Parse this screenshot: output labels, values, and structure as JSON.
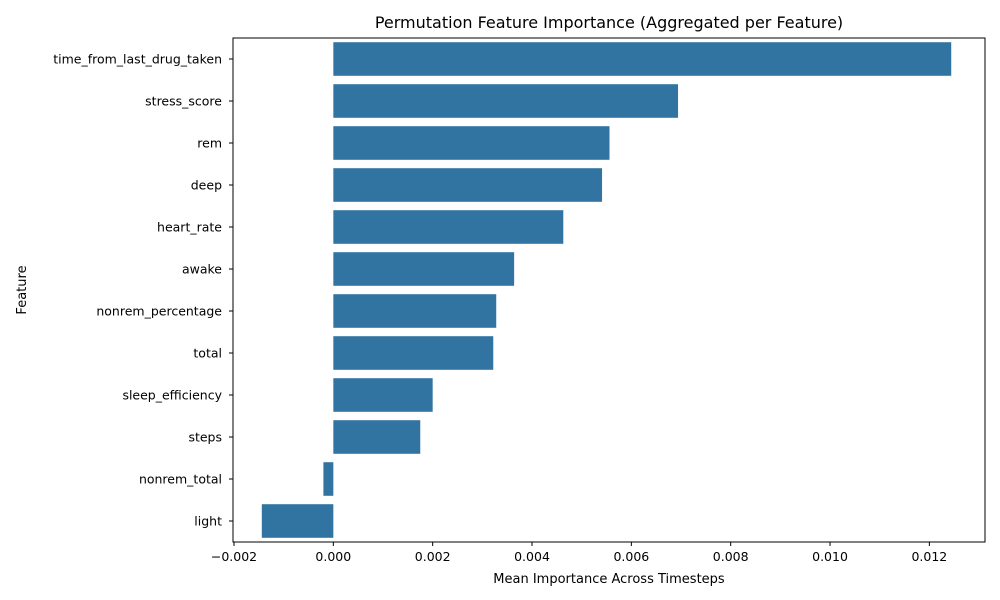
{
  "chart_data": {
    "type": "bar",
    "orientation": "horizontal",
    "title": "Permutation Feature Importance (Aggregated per Feature)",
    "xlabel": "Mean Importance Across Timesteps",
    "ylabel": "Feature",
    "xlim": [
      -0.00202,
      0.01312
    ],
    "xticks": [
      -0.002,
      0.0,
      0.002,
      0.004,
      0.006,
      0.008,
      0.01,
      0.012
    ],
    "xtick_labels": [
      "−0.002",
      "0.000",
      "0.002",
      "0.004",
      "0.006",
      "0.008",
      "0.010",
      "0.012"
    ],
    "grid": false,
    "bar_color": "#3274a1",
    "categories": [
      "time_from_last_drug_taken",
      "stress_score",
      "rem",
      "deep",
      "heart_rate",
      "awake",
      "nonrem_percentage",
      "total",
      "sleep_efficiency",
      "steps",
      "nonrem_total",
      "light"
    ],
    "values": [
      0.01244,
      0.00694,
      0.00556,
      0.00541,
      0.00463,
      0.00364,
      0.00328,
      0.00322,
      0.002,
      0.00175,
      -0.0002,
      -0.00144
    ]
  }
}
